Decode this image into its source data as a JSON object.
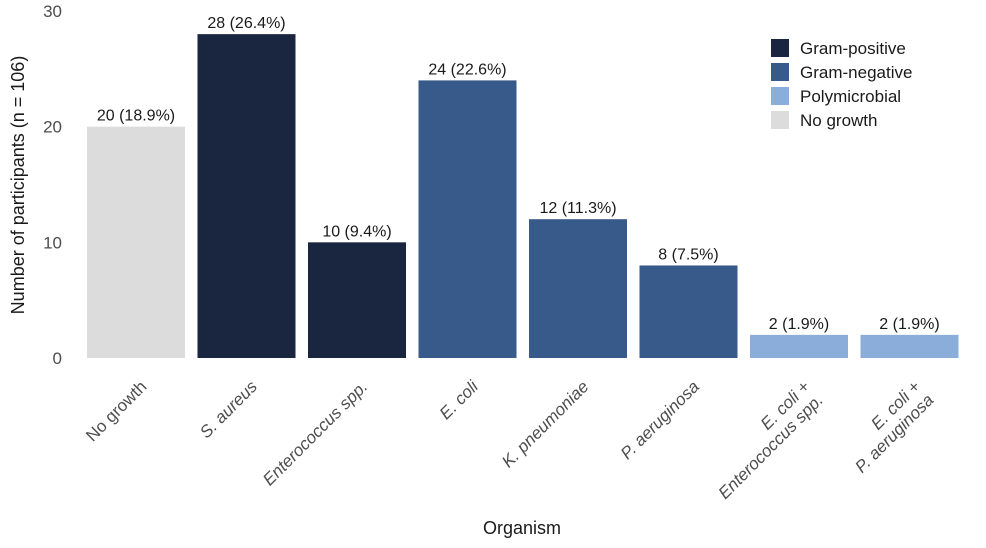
{
  "chart_data": {
    "type": "bar",
    "xlabel": "Organism",
    "ylabel": "Number of participants (n = 106)",
    "ylim": [
      0,
      30
    ],
    "yticks": [
      0,
      10,
      20,
      30
    ],
    "grid": false,
    "legend_position": "top-right",
    "categories": [
      "No growth",
      "S. aureus",
      "Enterococcus spp.",
      "E. coli",
      "K. pneumoniae",
      "P. aeruginosa",
      "E. coli + Enterococcus spp.",
      "E. coli + P. aeruginosa"
    ],
    "category_lines": [
      [
        {
          "text": "No growth",
          "italic": false
        }
      ],
      [
        {
          "text": "S. aureus",
          "italic": true
        }
      ],
      [
        {
          "text": "Enterococcus spp.",
          "italic": true
        }
      ],
      [
        {
          "text": "E. coli",
          "italic": true
        }
      ],
      [
        {
          "text": "K. pneumoniae",
          "italic": true
        }
      ],
      [
        {
          "text": "P. aeruginosa",
          "italic": true
        }
      ],
      [
        {
          "text": "E. coli +",
          "italic": true
        },
        {
          "text": "Enterococcus spp.",
          "italic": true
        }
      ],
      [
        {
          "text": "E. coli +",
          "italic": true
        },
        {
          "text": "P. aeruginosa",
          "italic": true
        }
      ]
    ],
    "values": [
      20,
      28,
      10,
      24,
      12,
      8,
      2,
      2
    ],
    "data_labels": [
      "20 (18.9%)",
      "28 (26.4%)",
      "10 (9.4%)",
      "24 (22.6%)",
      "12 (11.3%)",
      "8 (7.5%)",
      "2 (1.9%)",
      "2 (1.9%)"
    ],
    "groups": [
      "No growth",
      "Gram-positive",
      "Gram-positive",
      "Gram-negative",
      "Gram-negative",
      "Gram-negative",
      "Polymicrobial",
      "Polymicrobial"
    ],
    "legend": [
      {
        "name": "Gram-positive",
        "color": "#1a2540"
      },
      {
        "name": "Gram-negative",
        "color": "#385a8a"
      },
      {
        "name": "Polymicrobial",
        "color": "#8badd9"
      },
      {
        "name": "No growth",
        "color": "#dcdcdc"
      }
    ]
  }
}
